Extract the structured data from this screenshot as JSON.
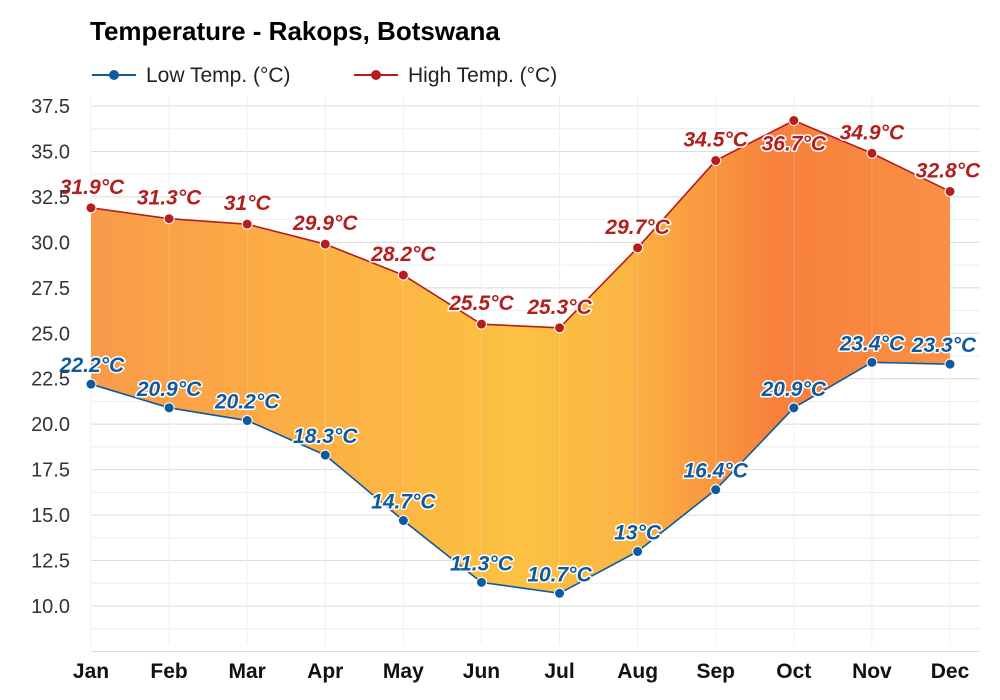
{
  "chart_data": {
    "type": "line",
    "title": "Temperature - Rakops, Botswana",
    "categories": [
      "Jan",
      "Feb",
      "Mar",
      "Apr",
      "May",
      "Jun",
      "Jul",
      "Aug",
      "Sep",
      "Oct",
      "Nov",
      "Dec"
    ],
    "series": [
      {
        "name": "Low Temp. (°C)",
        "color": "#0d5aa0",
        "values": [
          22.2,
          20.9,
          20.2,
          18.3,
          14.7,
          11.3,
          10.7,
          13,
          16.4,
          20.9,
          23.4,
          23.3
        ],
        "labels": [
          "22.2°C",
          "20.9°C",
          "20.2°C",
          "18.3°C",
          "14.7°C",
          "11.3°C",
          "10.7°C",
          "13°C",
          "16.4°C",
          "20.9°C",
          "23.4°C",
          "23.3°C"
        ]
      },
      {
        "name": "High Temp. (°C)",
        "color": "#b41e1e",
        "values": [
          31.9,
          31.3,
          31,
          29.9,
          28.2,
          25.5,
          25.3,
          29.7,
          34.5,
          36.7,
          34.9,
          32.8
        ],
        "labels": [
          "31.9°C",
          "31.3°C",
          "31°C",
          "29.9°C",
          "28.2°C",
          "25.5°C",
          "25.3°C",
          "29.7°C",
          "34.5°C",
          "36.7°C",
          "34.9°C",
          "32.8°C"
        ]
      }
    ],
    "yticks": [
      "10.0",
      "12.5",
      "15.0",
      "17.5",
      "20.0",
      "22.5",
      "25.0",
      "27.5",
      "30.0",
      "32.5",
      "35.0",
      "37.5"
    ],
    "ylim": [
      7.5,
      38
    ],
    "grid": true,
    "legend_position": "top-left",
    "fill_between": true
  }
}
